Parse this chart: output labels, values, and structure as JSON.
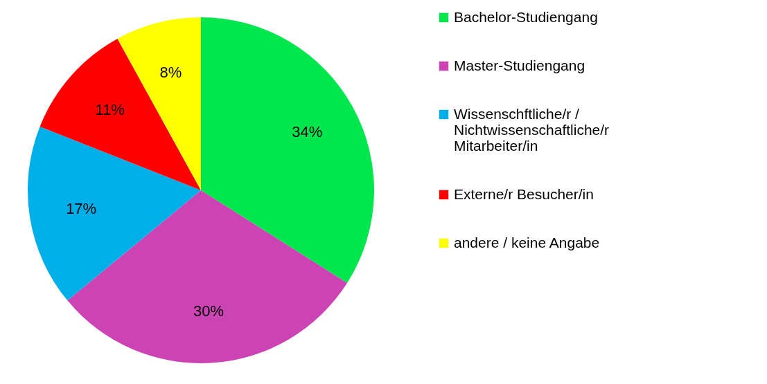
{
  "chart_data": {
    "type": "pie",
    "categories": [
      "Bachelor-Studiengang",
      "Master-Studiengang",
      "Wissenschftliche/r / Nichtwissenschaftliche/r Mitarbeiter/in",
      "Externe/r Besucher/in",
      "andere / keine Angabe"
    ],
    "values": [
      34,
      30,
      17,
      11,
      8
    ],
    "colors": [
      "#00e64d",
      "#cc44b4",
      "#00aee8",
      "#ff0000",
      "#ffff00"
    ],
    "value_labels": [
      "34%",
      "30%",
      "17%",
      "11%",
      "8%"
    ],
    "legend": "right"
  }
}
